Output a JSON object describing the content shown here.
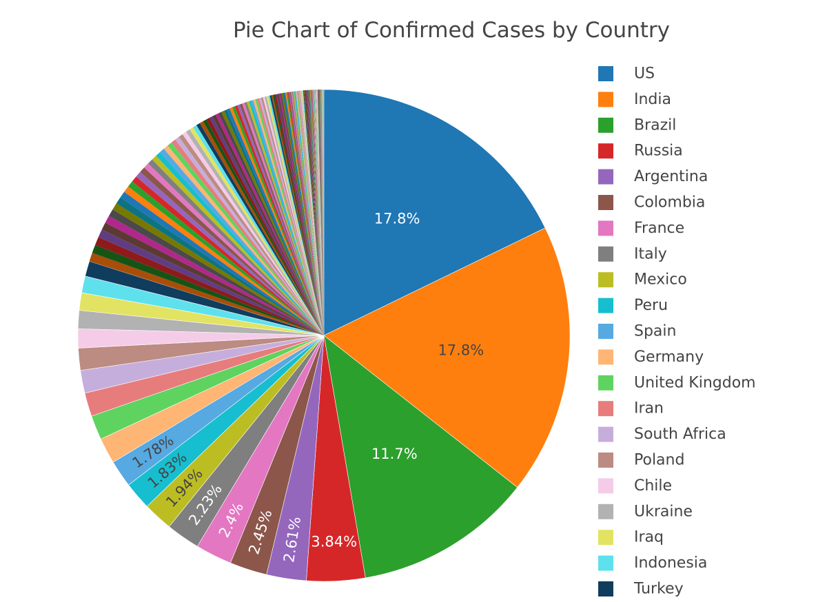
{
  "chart_data": {
    "type": "pie",
    "title": "Pie Chart of Confirmed Cases by Country",
    "legend_position": "right",
    "direction": "clockwise",
    "labeled_slices": [
      {
        "name": "US",
        "percent": 17.8,
        "label": "17.8%",
        "color": "#1f77b4"
      },
      {
        "name": "India",
        "percent": 17.8,
        "label": "17.8%",
        "color": "#ff7f0e"
      },
      {
        "name": "Brazil",
        "percent": 11.7,
        "label": "11.7%",
        "color": "#2ca02c"
      },
      {
        "name": "Russia",
        "percent": 3.84,
        "label": "3.84%",
        "color": "#d62728"
      },
      {
        "name": "Argentina",
        "percent": 2.61,
        "label": "2.61%",
        "color": "#9467bd"
      },
      {
        "name": "Colombia",
        "percent": 2.45,
        "label": "2.45%",
        "color": "#8c564b"
      },
      {
        "name": "France",
        "percent": 2.4,
        "label": "2.4%",
        "color": "#e377c2"
      },
      {
        "name": "Italy",
        "percent": 2.23,
        "label": "2.23%",
        "color": "#7f7f7f"
      },
      {
        "name": "Mexico",
        "percent": 1.94,
        "label": "1.94%",
        "color": "#bcbd22"
      },
      {
        "name": "Peru",
        "percent": 1.83,
        "label": "1.83%",
        "color": "#17becf"
      },
      {
        "name": "Spain",
        "percent": 1.78,
        "label": "1.78%",
        "color": "#57a9e2"
      }
    ],
    "unlabeled_slices": [
      {
        "name": "Germany",
        "percent": 1.7,
        "color": "#ffb574"
      },
      {
        "name": "United Kingdom",
        "percent": 1.6,
        "color": "#5fd35f"
      },
      {
        "name": "Iran",
        "percent": 1.55,
        "color": "#e77c7c"
      },
      {
        "name": "South Africa",
        "percent": 1.5,
        "color": "#c6aedc"
      },
      {
        "name": "Poland",
        "percent": 1.45,
        "color": "#bc8b81"
      },
      {
        "name": "Chile",
        "percent": 1.25,
        "color": "#f4cce8"
      },
      {
        "name": "Ukraine",
        "percent": 1.2,
        "color": "#b2b2b2"
      },
      {
        "name": "Iraq",
        "percent": 1.15,
        "color": "#e2e362"
      },
      {
        "name": "Indonesia",
        "percent": 1.1,
        "color": "#5fe0ed"
      },
      {
        "name": "Turkey",
        "percent": 1.0,
        "color": "#103d5d"
      }
    ],
    "other_slice_colors": [
      "#a84e08",
      "#165416",
      "#8e1a1a",
      "#603d82",
      "#5c3a33",
      "#b1278c",
      "#4a4a4a",
      "#777800",
      "#0e7380",
      "#1f77b4",
      "#ff7f0e",
      "#2ca02c",
      "#d62728",
      "#9467bd",
      "#8c564b",
      "#e377c2",
      "#7f7f7f",
      "#bcbd22",
      "#17becf",
      "#57a9e2",
      "#ffb574",
      "#5fd35f",
      "#e77c7c",
      "#c6aedc",
      "#bc8b81",
      "#f4cce8",
      "#b2b2b2",
      "#e2e362",
      "#5fe0ed",
      "#103d5d"
    ],
    "label_colors": {
      "dark": "#444444",
      "light": "#ffffff"
    }
  }
}
